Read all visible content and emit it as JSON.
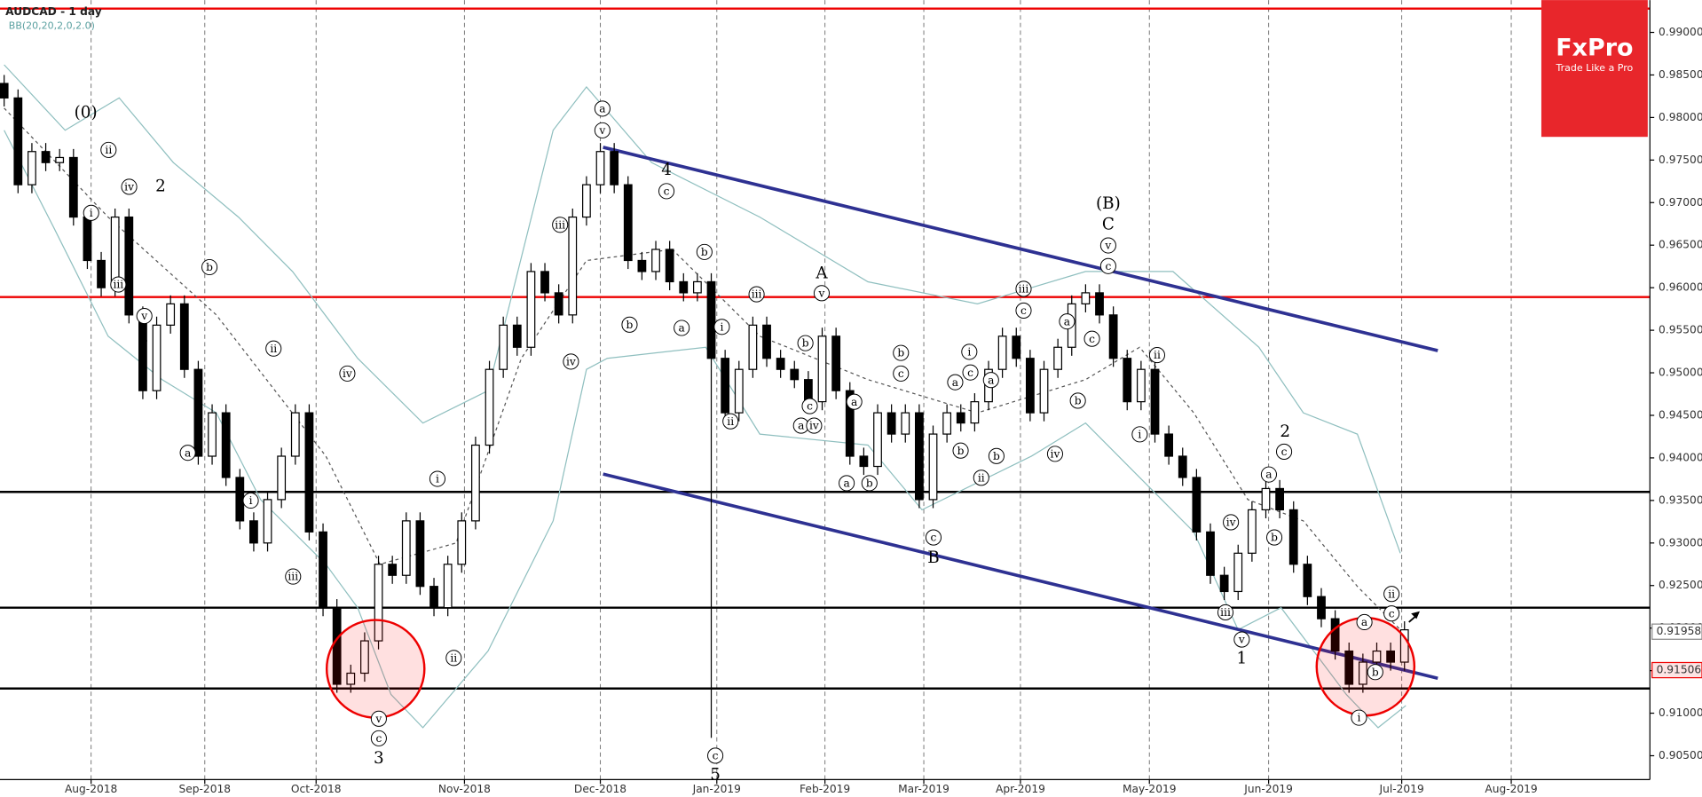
{
  "chart_data": {
    "type": "candlestick",
    "title": "AUDCAD - 1 day",
    "subtitle": "BB(20,20,2,0,2.0)",
    "up_color": "#ffffff",
    "down_color": "#000000",
    "ohlc": [
      [
        0.984,
        0.985,
        0.9813,
        0.9823
      ],
      [
        0.9823,
        0.9833,
        0.9711,
        0.9721
      ],
      [
        0.9721,
        0.977,
        0.9711,
        0.976
      ],
      [
        0.976,
        0.977,
        0.9737,
        0.9747
      ],
      [
        0.9747,
        0.9763,
        0.9737,
        0.9753
      ],
      [
        0.9753,
        0.9763,
        0.9673,
        0.9683
      ],
      [
        0.9683,
        0.9693,
        0.9622,
        0.9632
      ],
      [
        0.9632,
        0.9642,
        0.959,
        0.96
      ],
      [
        0.96,
        0.9693,
        0.959,
        0.9683
      ],
      [
        0.9683,
        0.9693,
        0.9558,
        0.9568
      ],
      [
        0.9568,
        0.9578,
        0.9469,
        0.9479
      ],
      [
        0.9479,
        0.9566,
        0.9469,
        0.9556
      ],
      [
        0.9556,
        0.9591,
        0.9546,
        0.9581
      ],
      [
        0.9581,
        0.9591,
        0.9494,
        0.9504
      ],
      [
        0.9504,
        0.9514,
        0.9392,
        0.9402
      ],
      [
        0.9402,
        0.9463,
        0.9392,
        0.9453
      ],
      [
        0.9453,
        0.9463,
        0.9367,
        0.9377
      ],
      [
        0.9377,
        0.9387,
        0.9316,
        0.9326
      ],
      [
        0.9326,
        0.9336,
        0.929,
        0.93
      ],
      [
        0.93,
        0.9361,
        0.929,
        0.9351
      ],
      [
        0.9351,
        0.9412,
        0.9341,
        0.9402
      ],
      [
        0.9402,
        0.9463,
        0.9392,
        0.9453
      ],
      [
        0.9453,
        0.9463,
        0.9303,
        0.9313
      ],
      [
        0.9313,
        0.9323,
        0.9214,
        0.9224
      ],
      [
        0.9224,
        0.9234,
        0.9124,
        0.9134
      ],
      [
        0.9134,
        0.9157,
        0.9124,
        0.9147
      ],
      [
        0.9147,
        0.9195,
        0.9137,
        0.9185
      ],
      [
        0.9185,
        0.9285,
        0.9175,
        0.9275
      ],
      [
        0.9275,
        0.9285,
        0.9252,
        0.9262
      ],
      [
        0.9262,
        0.9336,
        0.9252,
        0.9326
      ],
      [
        0.9326,
        0.9336,
        0.9239,
        0.9249
      ],
      [
        0.9249,
        0.9259,
        0.9214,
        0.9224
      ],
      [
        0.9224,
        0.9285,
        0.9214,
        0.9275
      ],
      [
        0.9275,
        0.9336,
        0.9265,
        0.9326
      ],
      [
        0.9326,
        0.9425,
        0.9316,
        0.9415
      ],
      [
        0.9415,
        0.9514,
        0.9405,
        0.9504
      ],
      [
        0.9504,
        0.9566,
        0.9494,
        0.9556
      ],
      [
        0.9556,
        0.9566,
        0.952,
        0.953
      ],
      [
        0.953,
        0.9629,
        0.952,
        0.9619
      ],
      [
        0.9619,
        0.9629,
        0.9584,
        0.9594
      ],
      [
        0.9594,
        0.9604,
        0.9558,
        0.9568
      ],
      [
        0.9568,
        0.9693,
        0.9558,
        0.9683
      ],
      [
        0.9683,
        0.9731,
        0.9673,
        0.9721
      ],
      [
        0.9721,
        0.977,
        0.9711,
        0.976
      ],
      [
        0.976,
        0.977,
        0.9711,
        0.9721
      ],
      [
        0.9721,
        0.9731,
        0.9622,
        0.9632
      ],
      [
        0.9632,
        0.9642,
        0.9609,
        0.9619
      ],
      [
        0.9619,
        0.9655,
        0.9609,
        0.9645
      ],
      [
        0.9645,
        0.9655,
        0.9597,
        0.9607
      ],
      [
        0.9607,
        0.9617,
        0.9584,
        0.9594
      ],
      [
        0.9594,
        0.9617,
        0.9584,
        0.9607
      ],
      [
        0.9607,
        0.9617,
        0.9071,
        0.9517
      ],
      [
        0.9517,
        0.9527,
        0.9443,
        0.9453
      ],
      [
        0.9453,
        0.9514,
        0.9443,
        0.9504
      ],
      [
        0.9504,
        0.9566,
        0.9494,
        0.9556
      ],
      [
        0.9556,
        0.9566,
        0.9507,
        0.9517
      ],
      [
        0.9517,
        0.9527,
        0.9494,
        0.9504
      ],
      [
        0.9504,
        0.9514,
        0.9482,
        0.9492
      ],
      [
        0.9492,
        0.9502,
        0.9456,
        0.9466
      ],
      [
        0.9466,
        0.9553,
        0.9456,
        0.9543
      ],
      [
        0.9543,
        0.9553,
        0.9469,
        0.9479
      ],
      [
        0.9479,
        0.9489,
        0.9392,
        0.9402
      ],
      [
        0.9402,
        0.9412,
        0.938,
        0.939
      ],
      [
        0.939,
        0.9463,
        0.938,
        0.9453
      ],
      [
        0.9453,
        0.9463,
        0.9418,
        0.9428
      ],
      [
        0.9428,
        0.9463,
        0.9418,
        0.9453
      ],
      [
        0.9453,
        0.9463,
        0.9341,
        0.9351
      ],
      [
        0.9351,
        0.9438,
        0.9341,
        0.9428
      ],
      [
        0.9428,
        0.9463,
        0.9418,
        0.9453
      ],
      [
        0.9453,
        0.9463,
        0.9431,
        0.9441
      ],
      [
        0.9441,
        0.9476,
        0.9431,
        0.9466
      ],
      [
        0.9466,
        0.9514,
        0.9456,
        0.9504
      ],
      [
        0.9504,
        0.9553,
        0.9494,
        0.9543
      ],
      [
        0.9543,
        0.9553,
        0.9507,
        0.9517
      ],
      [
        0.9517,
        0.9527,
        0.9443,
        0.9453
      ],
      [
        0.9453,
        0.9514,
        0.9443,
        0.9504
      ],
      [
        0.9504,
        0.954,
        0.9494,
        0.953
      ],
      [
        0.953,
        0.9591,
        0.952,
        0.9581
      ],
      [
        0.9581,
        0.9604,
        0.9571,
        0.9594
      ],
      [
        0.9594,
        0.9604,
        0.9558,
        0.9568
      ],
      [
        0.9568,
        0.9578,
        0.9507,
        0.9517
      ],
      [
        0.9517,
        0.9527,
        0.9456,
        0.9466
      ],
      [
        0.9466,
        0.9514,
        0.9456,
        0.9504
      ],
      [
        0.9504,
        0.9514,
        0.9418,
        0.9428
      ],
      [
        0.9428,
        0.9438,
        0.9392,
        0.9402
      ],
      [
        0.9402,
        0.9412,
        0.9367,
        0.9377
      ],
      [
        0.9377,
        0.9387,
        0.9303,
        0.9313
      ],
      [
        0.9313,
        0.9323,
        0.9252,
        0.9262
      ],
      [
        0.9262,
        0.9272,
        0.9233,
        0.9243
      ],
      [
        0.9243,
        0.9298,
        0.9233,
        0.9288
      ],
      [
        0.9288,
        0.9349,
        0.9278,
        0.9339
      ],
      [
        0.9339,
        0.9374,
        0.9329,
        0.9364
      ],
      [
        0.9364,
        0.9374,
        0.9329,
        0.9339
      ],
      [
        0.9339,
        0.9349,
        0.9265,
        0.9275
      ],
      [
        0.9275,
        0.9285,
        0.9227,
        0.9237
      ],
      [
        0.9237,
        0.9247,
        0.9201,
        0.9211
      ],
      [
        0.9211,
        0.9221,
        0.9163,
        0.9173
      ],
      [
        0.9173,
        0.9183,
        0.9124,
        0.9134
      ],
      [
        0.9134,
        0.917,
        0.9124,
        0.916
      ],
      [
        0.916,
        0.9183,
        0.915,
        0.9173
      ],
      [
        0.9173,
        0.9183,
        0.915,
        0.916
      ],
      [
        0.916,
        0.9208,
        0.915,
        0.9198
      ]
    ],
    "bands": [
      {
        "color": "#8fbfbf",
        "dash": false,
        "x": [
          0,
          4.4,
          8.3,
          12.2,
          16.9,
          20.8,
          25.5,
          30.2,
          34.9,
          39.6,
          42,
          46.7,
          54.5,
          62.3,
          70.2,
          78,
          84.3,
          90.5,
          93.7,
          97.6,
          100.7
        ],
        "values": [
          0.9862,
          0.9785,
          0.9823,
          0.9747,
          0.9683,
          0.9619,
          0.9517,
          0.9441,
          0.9479,
          0.9785,
          0.9836,
          0.9747,
          0.9683,
          0.9607,
          0.9581,
          0.9619,
          0.9619,
          0.953,
          0.9453,
          0.9428,
          0.9288
        ]
      },
      {
        "color": "#555555",
        "dash": true,
        "x": [
          0,
          7.5,
          15.3,
          23.2,
          27.1,
          32.6,
          37.3,
          42,
          48.2,
          54.5,
          62.3,
          70.2,
          78,
          81.9,
          85.8,
          89.7,
          93.7,
          97.6,
          100.7
        ],
        "values": [
          0.9811,
          0.9683,
          0.9568,
          0.9402,
          0.9275,
          0.93,
          0.9517,
          0.9632,
          0.9645,
          0.9543,
          0.9492,
          0.9453,
          0.9492,
          0.953,
          0.9453,
          0.9351,
          0.9326,
          0.9249,
          0.9198
        ]
      },
      {
        "color": "#8fbfbf",
        "dash": false,
        "x": [
          0,
          3.6,
          7.5,
          11.4,
          15.3,
          18.5,
          23.2,
          25.5,
          27.9,
          30.2,
          34.9,
          39.6,
          42,
          43.5,
          50.6,
          54.5,
          62.3,
          66.2,
          74.1,
          78,
          85.8,
          89,
          92.1,
          96.8,
          99.1,
          101.1
        ],
        "values": [
          0.9785,
          0.967,
          0.9543,
          0.9492,
          0.9453,
          0.9351,
          0.9275,
          0.9224,
          0.9122,
          0.9083,
          0.9173,
          0.9326,
          0.9504,
          0.9517,
          0.953,
          0.9428,
          0.9415,
          0.9339,
          0.9402,
          0.9441,
          0.9313,
          0.9198,
          0.9224,
          0.9122,
          0.9083,
          0.9109
        ]
      }
    ],
    "levels": [
      {
        "value": 0.9928,
        "color": "#ee0000"
      },
      {
        "value": 0.9589,
        "color": "#ee0000"
      },
      {
        "value": 0.936,
        "color": "#000000"
      },
      {
        "value": 0.9224,
        "color": "#000000"
      },
      {
        "value": 0.9129,
        "color": "#000000"
      }
    ],
    "channel_color": "#2e3192",
    "channel": [
      {
        "x": [
          43.2,
          103.4
        ],
        "values": [
          0.9765,
          0.9526
        ]
      },
      {
        "x": [
          43.2,
          103.4
        ],
        "values": [
          0.9381,
          0.9141
        ]
      }
    ],
    "price_labels": [
      {
        "value": 0.91958,
        "label": "0.91958",
        "color": "#888888"
      },
      {
        "value": 0.91506,
        "label": "0.91506",
        "color": "#ee0000"
      }
    ],
    "wave_labels": [
      "(0)",
      "ii",
      "i",
      "iv",
      "iii",
      "2",
      "v",
      "1",
      "b",
      "a",
      "ii",
      "i",
      "iii",
      "iv",
      "i",
      "ii",
      "v",
      "c",
      "3",
      "iii",
      "iv",
      "a",
      "v",
      "4",
      "c",
      "b",
      "a",
      "b",
      "i",
      "ii",
      "c",
      "5",
      "iii",
      "A",
      "v",
      "b",
      "c",
      "a",
      "iv",
      "a",
      "a",
      "b",
      "b",
      "c",
      "c",
      "B",
      "a",
      "b",
      "i",
      "c",
      "ii",
      "a",
      "b",
      "iii",
      "c",
      "a",
      "iv",
      "b",
      "c",
      "(B)",
      "C",
      "v",
      "c",
      "ii",
      "i",
      "iv",
      "iii",
      "v",
      "1",
      "a",
      "2",
      "c",
      "b",
      "ii",
      "c",
      "a",
      "b",
      "i"
    ],
    "xlim": [
      -0.3,
      118.7
    ],
    "xticks": [
      {
        "value": 6.27,
        "label": "Aug-2018"
      },
      {
        "value": 14.47,
        "label": "Sep-2018"
      },
      {
        "value": 22.5,
        "label": "Oct-2018"
      },
      {
        "value": 33.2,
        "label": "Nov-2018"
      },
      {
        "value": 43.0,
        "label": "Dec-2018"
      },
      {
        "value": 51.4,
        "label": "Jan-2019"
      },
      {
        "value": 59.2,
        "label": "Feb-2019"
      },
      {
        "value": 66.33,
        "label": "Mar-2019"
      },
      {
        "value": 73.3,
        "label": "Apr-2019"
      },
      {
        "value": 82.6,
        "label": "May-2019"
      },
      {
        "value": 91.2,
        "label": "Jun-2019"
      },
      {
        "value": 100.8,
        "label": "Jul-2019"
      },
      {
        "value": 108.7,
        "label": "Aug-2019"
      }
    ],
    "ylim": [
      0.9022,
      0.9938
    ],
    "yticks": [
      {
        "value": 0.905,
        "label": "0.90500"
      },
      {
        "value": 0.91,
        "label": "0.91000"
      },
      {
        "value": 0.915,
        "label": "0.91500"
      },
      {
        "value": 0.92,
        "label": "0.92000"
      },
      {
        "value": 0.925,
        "label": "0.92500"
      },
      {
        "value": 0.93,
        "label": "0.93000"
      },
      {
        "value": 0.935,
        "label": "0.93500"
      },
      {
        "value": 0.94,
        "label": "0.94000"
      },
      {
        "value": 0.945,
        "label": "0.94500"
      },
      {
        "value": 0.95,
        "label": "0.95000"
      },
      {
        "value": 0.955,
        "label": "0.95500"
      },
      {
        "value": 0.96,
        "label": "0.96000"
      },
      {
        "value": 0.965,
        "label": "0.96500"
      },
      {
        "value": 0.97,
        "label": "0.97000"
      },
      {
        "value": 0.975,
        "label": "0.97500"
      },
      {
        "value": 0.98,
        "label": "0.98000"
      },
      {
        "value": 0.985,
        "label": "0.98500"
      },
      {
        "value": 0.99,
        "label": "0.99000"
      }
    ],
    "grid": true
  },
  "logo": {
    "brand": "FxPro",
    "tagline": "Trade Like a Pro"
  }
}
